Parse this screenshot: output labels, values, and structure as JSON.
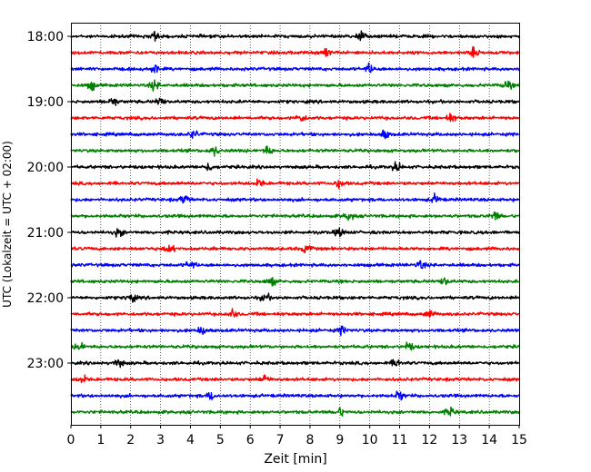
{
  "chart_data": {
    "type": "line",
    "title": "",
    "xlabel": "Zeit  [min]",
    "ylabel": "UTC (Lokalzeit = UTC + 02:00)",
    "xlim": [
      0,
      15
    ],
    "x_ticks": [
      "0",
      "1",
      "2",
      "3",
      "4",
      "5",
      "6",
      "7",
      "8",
      "9",
      "10",
      "11",
      "12",
      "13",
      "14",
      "15"
    ],
    "y_ticks": [
      "18:00",
      "19:00",
      "20:00",
      "21:00",
      "22:00",
      "23:00"
    ],
    "grid": "vertical dotted",
    "trace_interval_min": 15,
    "trace_colors": [
      "#000000",
      "#ff0000",
      "#0000ff",
      "#008000"
    ],
    "traces": [
      {
        "start": "18:00",
        "color": "#000000",
        "bursts": [
          2.8,
          9.7
        ]
      },
      {
        "start": "18:15",
        "color": "#ff0000",
        "bursts": [
          8.5,
          13.5
        ]
      },
      {
        "start": "18:30",
        "color": "#0000ff",
        "bursts": [
          2.8,
          10.0
        ]
      },
      {
        "start": "18:45",
        "color": "#008000",
        "bursts": [
          0.7,
          2.8,
          14.6
        ]
      },
      {
        "start": "19:00",
        "color": "#000000",
        "bursts": [
          1.4,
          3.0
        ]
      },
      {
        "start": "19:15",
        "color": "#ff0000",
        "bursts": [
          7.7,
          12.7
        ]
      },
      {
        "start": "19:30",
        "color": "#0000ff",
        "bursts": [
          4.1,
          10.5
        ]
      },
      {
        "start": "19:45",
        "color": "#008000",
        "bursts": [
          6.6,
          4.8
        ]
      },
      {
        "start": "20:00",
        "color": "#000000",
        "bursts": [
          10.9,
          4.6
        ]
      },
      {
        "start": "20:15",
        "color": "#ff0000",
        "bursts": [
          9.0,
          6.3
        ]
      },
      {
        "start": "20:30",
        "color": "#0000ff",
        "bursts": [
          3.8,
          12.2
        ]
      },
      {
        "start": "20:45",
        "color": "#008000",
        "bursts": [
          9.3,
          14.2
        ]
      },
      {
        "start": "21:00",
        "color": "#000000",
        "bursts": [
          1.6,
          9.0
        ]
      },
      {
        "start": "21:15",
        "color": "#ff0000",
        "bursts": [
          7.9,
          3.3
        ]
      },
      {
        "start": "21:30",
        "color": "#0000ff",
        "bursts": [
          4.0,
          11.7
        ]
      },
      {
        "start": "21:45",
        "color": "#008000",
        "bursts": [
          6.7,
          12.5
        ]
      },
      {
        "start": "22:00",
        "color": "#000000",
        "bursts": [
          2.0,
          6.5
        ]
      },
      {
        "start": "22:15",
        "color": "#ff0000",
        "bursts": [
          5.4,
          12.0
        ]
      },
      {
        "start": "22:30",
        "color": "#0000ff",
        "bursts": [
          9.1,
          4.4
        ]
      },
      {
        "start": "22:45",
        "color": "#008000",
        "bursts": [
          11.3,
          0.3
        ]
      },
      {
        "start": "23:00",
        "color": "#000000",
        "bursts": [
          10.9,
          1.6
        ]
      },
      {
        "start": "23:15",
        "color": "#ff0000",
        "bursts": [
          0.4,
          6.5
        ]
      },
      {
        "start": "23:30",
        "color": "#0000ff",
        "bursts": [
          4.7,
          11.0
        ]
      },
      {
        "start": "23:45",
        "color": "#008000",
        "bursts": [
          9.0,
          12.7
        ]
      }
    ]
  }
}
